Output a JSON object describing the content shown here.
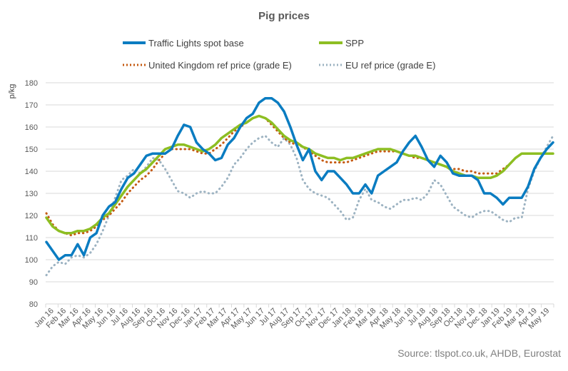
{
  "chart_data": {
    "type": "line",
    "title": "Pig prices",
    "xlabel": "",
    "ylabel": "p/kg",
    "ylim": [
      80,
      180
    ],
    "yticks": [
      80,
      90,
      100,
      110,
      120,
      130,
      140,
      150,
      160,
      170,
      180
    ],
    "grid": true,
    "legend_position": "top",
    "source": "Source: tlspot.co.uk, AHDB, Eurostat",
    "categories": [
      "Jan 16",
      "Feb 16",
      "Mar 16",
      "Apr 16",
      "May 16",
      "Jun 16",
      "Jul 16",
      "Aug 16",
      "Sep 16",
      "Oct 16",
      "Nov 16",
      "Dec 16",
      "Jan 17",
      "Feb 17",
      "Mar 17",
      "Apr 17",
      "May 17",
      "Jun 17",
      "Jul 17",
      "Aug 17",
      "Sep 17",
      "Oct 17",
      "Nov 17",
      "Dec 17",
      "Jan 18",
      "Feb 18",
      "Mar 18",
      "Apr 18",
      "May 18",
      "Jun 18",
      "Jul 18",
      "Aug 18",
      "Sep 18",
      "Oct 18",
      "Nov 18",
      "Dec 18",
      "Jan 19",
      "Feb 19",
      "Mar 19",
      "Apr 19",
      "May 19"
    ],
    "points_per_category": 2,
    "series": [
      {
        "name": "Traffic Lights spot base",
        "color": "#0A7CC1",
        "style": "solid",
        "values": [
          108,
          104,
          100,
          102,
          102,
          107,
          102,
          110,
          112,
          120,
          124,
          126,
          132,
          137,
          139,
          143,
          147,
          148,
          148,
          148,
          150,
          156,
          161,
          160,
          153,
          150,
          148,
          145,
          146,
          152,
          155,
          160,
          164,
          166,
          171,
          173,
          173,
          171,
          167,
          160,
          152,
          145,
          150,
          140,
          136,
          140,
          140,
          137,
          134,
          130,
          130,
          134,
          130,
          138,
          140,
          142,
          144,
          149,
          153,
          156,
          151,
          145,
          142,
          147,
          144,
          139,
          138,
          138,
          138,
          136,
          130,
          130,
          128,
          125,
          128,
          128,
          128,
          133,
          141,
          146,
          150,
          153
        ]
      },
      {
        "name": "SPP",
        "color": "#8DBE22",
        "style": "solid",
        "values": [
          119,
          115,
          113,
          112,
          112,
          113,
          113,
          114,
          116,
          119,
          121,
          125,
          129,
          133,
          136,
          139,
          141,
          144,
          147,
          150,
          151,
          152,
          152,
          151,
          150,
          149,
          150,
          152,
          155,
          157,
          159,
          161,
          162,
          164,
          165,
          164,
          162,
          159,
          156,
          154,
          153,
          151,
          150,
          148,
          147,
          146,
          146,
          145,
          146,
          146,
          147,
          148,
          149,
          150,
          150,
          150,
          149,
          148,
          147,
          147,
          146,
          145,
          144,
          143,
          142,
          140,
          139,
          138,
          138,
          137,
          137,
          137,
          138,
          140,
          143,
          146,
          148,
          148,
          148,
          148,
          148,
          148
        ]
      },
      {
        "name": "United Kingdom ref price (grade E)",
        "color": "#C55A11",
        "style": "dotted",
        "values": [
          121,
          116,
          113,
          112,
          111,
          112,
          112,
          113,
          115,
          118,
          120,
          123,
          126,
          130,
          133,
          136,
          138,
          141,
          145,
          148,
          150,
          150,
          150,
          150,
          149,
          148,
          148,
          150,
          152,
          155,
          158,
          160,
          162,
          164,
          165,
          164,
          161,
          158,
          155,
          153,
          152,
          151,
          149,
          147,
          145,
          144,
          144,
          144,
          144,
          145,
          146,
          147,
          148,
          149,
          149,
          149,
          149,
          148,
          147,
          146,
          146,
          145,
          144,
          143,
          142,
          141,
          141,
          140,
          140,
          139,
          139,
          139,
          139,
          141,
          143,
          146,
          148,
          148,
          148,
          148,
          148,
          148
        ]
      },
      {
        "name": "EU ref price (grade E)",
        "color": "#9DB3C2",
        "style": "dotted",
        "values": [
          93,
          97,
          99,
          98,
          101,
          102,
          101,
          103,
          107,
          113,
          120,
          128,
          136,
          138,
          141,
          139,
          142,
          146,
          145,
          141,
          136,
          131,
          130,
          128,
          130,
          131,
          130,
          130,
          133,
          137,
          143,
          146,
          150,
          153,
          155,
          156,
          153,
          151,
          155,
          152,
          146,
          136,
          132,
          130,
          129,
          128,
          125,
          122,
          118,
          119,
          127,
          132,
          127,
          126,
          124,
          123,
          125,
          127,
          127,
          128,
          127,
          130,
          136,
          134,
          129,
          124,
          122,
          120,
          119,
          121,
          122,
          122,
          120,
          118,
          117,
          119,
          119,
          132,
          140,
          146,
          151,
          156
        ]
      }
    ]
  }
}
